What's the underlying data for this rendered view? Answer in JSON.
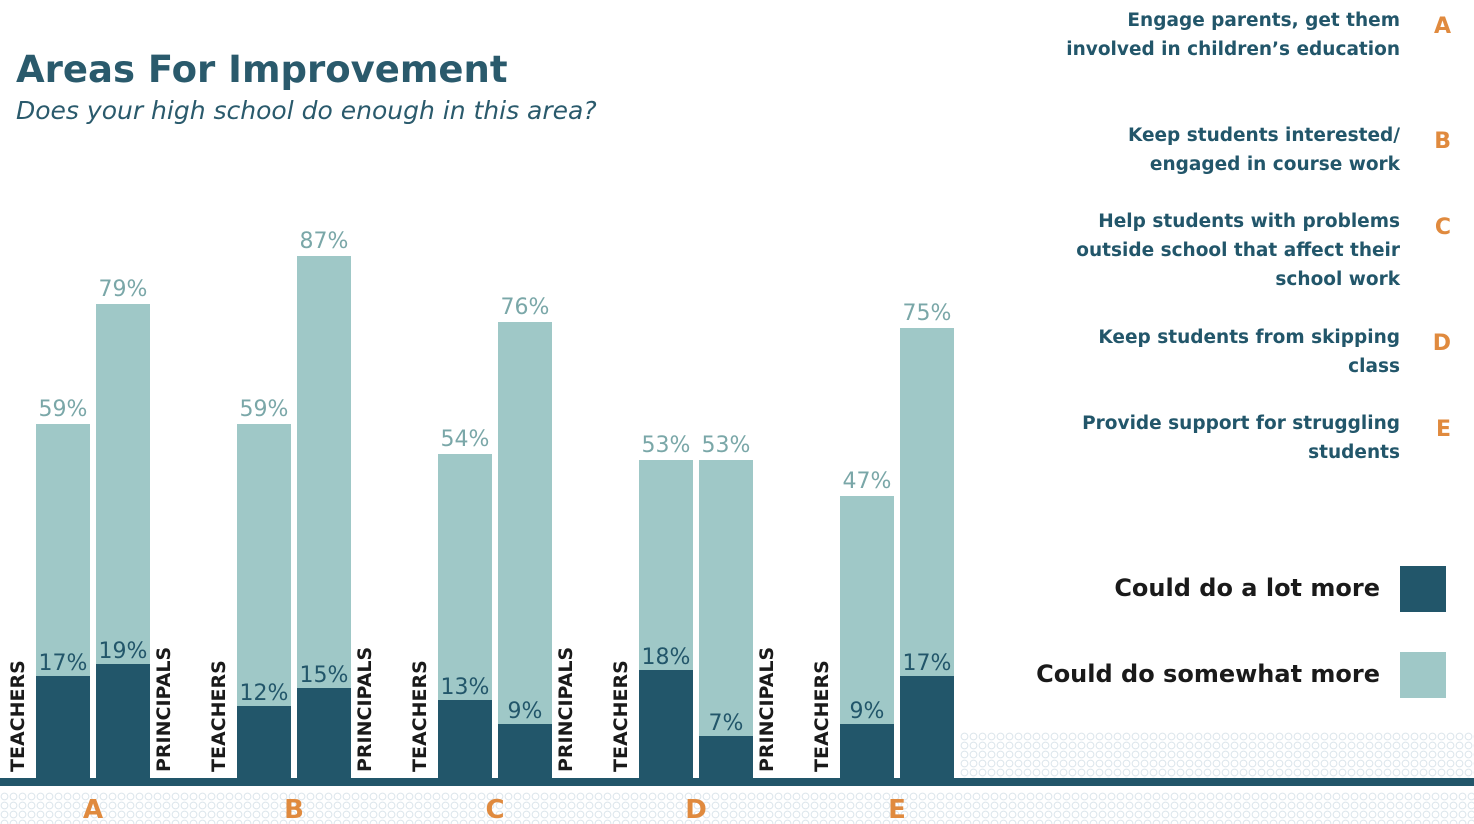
{
  "title": "Areas For Improvement",
  "subtitle": "Does your high school do enough in this area?",
  "colors": {
    "dark": "#22566a",
    "light": "#9fc8c7",
    "accent": "#e08a3e",
    "title": "#2a5a6c",
    "light_label": "#7aa7a8",
    "dark_label": "#ffffff"
  },
  "items": [
    {
      "letter": "A",
      "text": "Engage parents, get them involved in children’s education"
    },
    {
      "letter": "B",
      "text": "Keep students interested/ engaged in course work"
    },
    {
      "letter": "C",
      "text": "Help students with problems outside school that affect their school work"
    },
    {
      "letter": "D",
      "text": "Keep students from skipping class"
    },
    {
      "letter": "E",
      "text": "Provide support for struggling students"
    }
  ],
  "legend": [
    {
      "label": "Could do a lot more",
      "color": "#22566a"
    },
    {
      "label": "Could do somewhat more",
      "color": "#9fc8c7"
    }
  ],
  "chart_data": {
    "type": "bar",
    "categories": [
      "A",
      "B",
      "C",
      "D",
      "E"
    ],
    "groups": [
      "TEACHERS",
      "PRINCIPALS"
    ],
    "series": [
      {
        "name": "Could do a lot more",
        "color": "#22566a",
        "values": [
          [
            17,
            19
          ],
          [
            12,
            15
          ],
          [
            13,
            9
          ],
          [
            18,
            7
          ],
          [
            9,
            17
          ]
        ]
      },
      {
        "name": "Could do somewhat more",
        "color": "#9fc8c7",
        "values": [
          [
            59,
            79
          ],
          [
            59,
            87
          ],
          [
            54,
            76
          ],
          [
            53,
            53
          ],
          [
            47,
            75
          ]
        ]
      }
    ],
    "value_suffix": "%",
    "ylim": [
      0,
      100
    ],
    "grid": false
  }
}
